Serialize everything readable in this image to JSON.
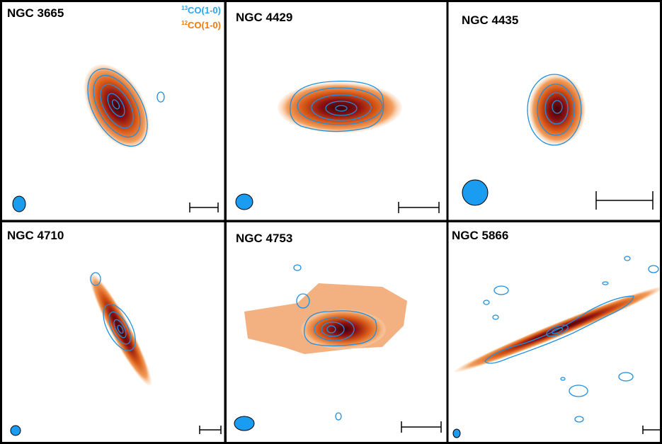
{
  "panels": [
    {
      "label": "NGC 3665"
    },
    {
      "label": "NGC 4429"
    },
    {
      "label": "NGC 4435"
    },
    {
      "label": "NGC 4710"
    },
    {
      "label": "NGC 4753"
    },
    {
      "label": "NGC 5866"
    }
  ],
  "legend": [
    {
      "isotope": "13",
      "molecule": "CO(1-0)"
    },
    {
      "isotope": "12",
      "molecule": "CO(1-0)"
    }
  ]
}
